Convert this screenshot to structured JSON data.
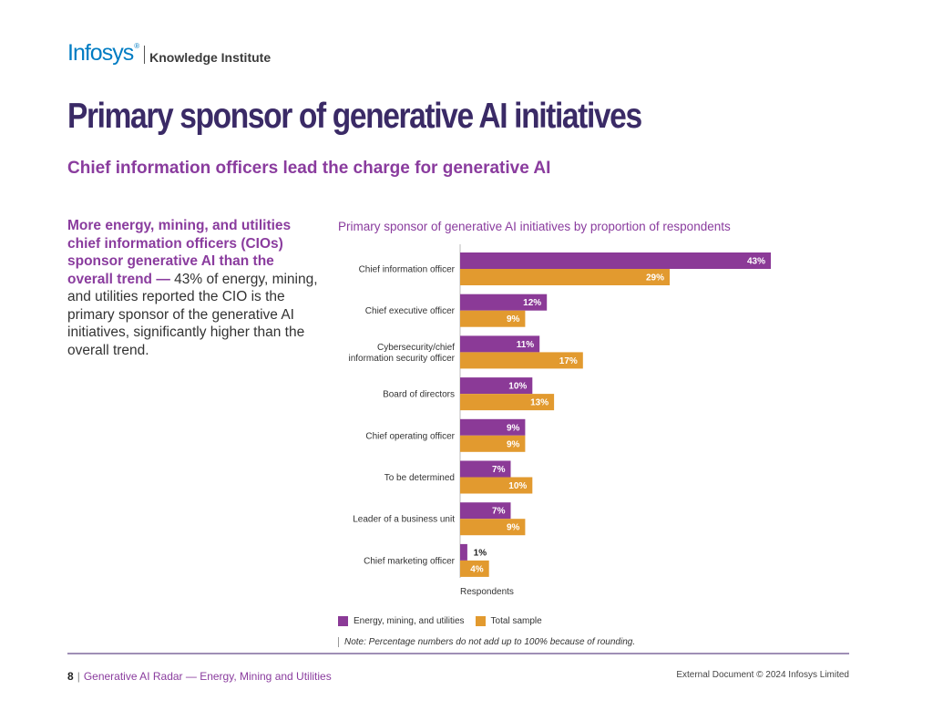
{
  "brand": {
    "logo": "Infosys",
    "registered": "®",
    "unit": "Knowledge Institute"
  },
  "page": {
    "title": "Primary sponsor of generative AI initiatives",
    "subtitle": "Chief information officers lead the charge for generative AI"
  },
  "lead": {
    "bold": "More energy, mining, and utilities chief information officers (CIOs) sponsor generative AI than the overall trend —",
    "text": " 43% of energy, mining, and utilities reported the CIO is the primary sponsor of the generative AI initiatives, significantly higher than the overall trend."
  },
  "colors": {
    "purple": "#8b3a97",
    "orange": "#e29a2f",
    "title_purple": "#3a2a66",
    "accent": "#8a3c9e"
  },
  "chart_data": {
    "type": "bar",
    "orientation": "horizontal",
    "title": "Primary sponsor of generative AI initiatives by proportion of respondents",
    "xlabel": "Respondents",
    "ylabel": "",
    "xlim": [
      0,
      43
    ],
    "grid": false,
    "legend_position": "bottom-left",
    "categories": [
      [
        "Chief information officer"
      ],
      [
        "Chief executive officer"
      ],
      [
        "Cybersecurity/chief",
        "information security officer"
      ],
      [
        "Board of directors"
      ],
      [
        "Chief operating officer"
      ],
      [
        "To be determined"
      ],
      [
        "Leader of a business unit"
      ],
      [
        "Chief marketing officer"
      ]
    ],
    "series": [
      {
        "name": "Energy, mining, and utilities",
        "color": "#8b3a97",
        "values": [
          43,
          12,
          11,
          10,
          9,
          7,
          7,
          1
        ]
      },
      {
        "name": "Total sample",
        "color": "#e29a2f",
        "values": [
          29,
          9,
          17,
          13,
          9,
          10,
          9,
          4
        ]
      }
    ],
    "value_suffix": "%"
  },
  "note": "Note: Percentage numbers do not add up to 100% because of rounding.",
  "footer": {
    "page_number": "8",
    "separator": "|",
    "report": "Generative AI Radar — Energy, Mining and Utilities",
    "copyright": "External Document © 2024 Infosys Limited"
  }
}
